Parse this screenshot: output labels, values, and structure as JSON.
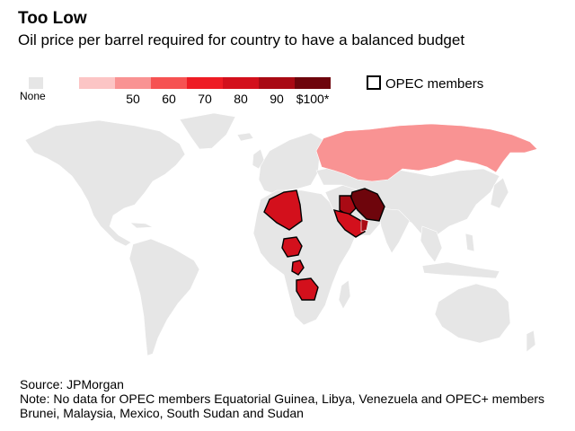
{
  "title": "Too Low",
  "subtitle": "Oil price per barrel required for country to have a balanced budget",
  "legend": {
    "none_label": "None",
    "none_color": "#e6e6e6",
    "bins": [
      {
        "color": "#fcc5c5",
        "tick": "",
        "min": 0,
        "max": 50
      },
      {
        "color": "#f99393",
        "tick": "50",
        "min": 50,
        "max": 60
      },
      {
        "color": "#f65252",
        "tick": "60",
        "min": 60,
        "max": 70
      },
      {
        "color": "#ee1c24",
        "tick": "70",
        "min": 70,
        "max": 80
      },
      {
        "color": "#d3101c",
        "tick": "80",
        "min": 80,
        "max": 90
      },
      {
        "color": "#a90a14",
        "tick": "90",
        "min": 90,
        "max": 100
      },
      {
        "color": "#6e050c",
        "tick": "$100*",
        "min": 100,
        "max": null
      }
    ],
    "opec_label": "OPEC members"
  },
  "map": {
    "land_color": "#e6e6e6",
    "border_color": "#ffffff",
    "opec_outline_color": "#000000",
    "countries": [
      {
        "region": "russia-kazakhstan",
        "opec_member": false,
        "color_bin": 1
      },
      {
        "region": "algeria",
        "opec_member": true,
        "color_bin": 4
      },
      {
        "region": "nigeria",
        "opec_member": true,
        "color_bin": 4
      },
      {
        "region": "gabon",
        "opec_member": true,
        "color_bin": 4
      },
      {
        "region": "angola",
        "opec_member": true,
        "color_bin": 4
      },
      {
        "region": "iran",
        "opec_member": true,
        "color_bin": 6
      },
      {
        "region": "iraq",
        "opec_member": true,
        "color_bin": 5
      },
      {
        "region": "saudi-arabia",
        "opec_member": true,
        "color_bin": 4
      },
      {
        "region": "oman",
        "opec_member": false,
        "color_bin": 5
      }
    ]
  },
  "source": "Source: JPMorgan",
  "note": "Note: No data for OPEC members Equatorial Guinea, Libya, Venezuela and OPEC+ members Brunei, Malaysia, Mexico, South Sudan and Sudan"
}
